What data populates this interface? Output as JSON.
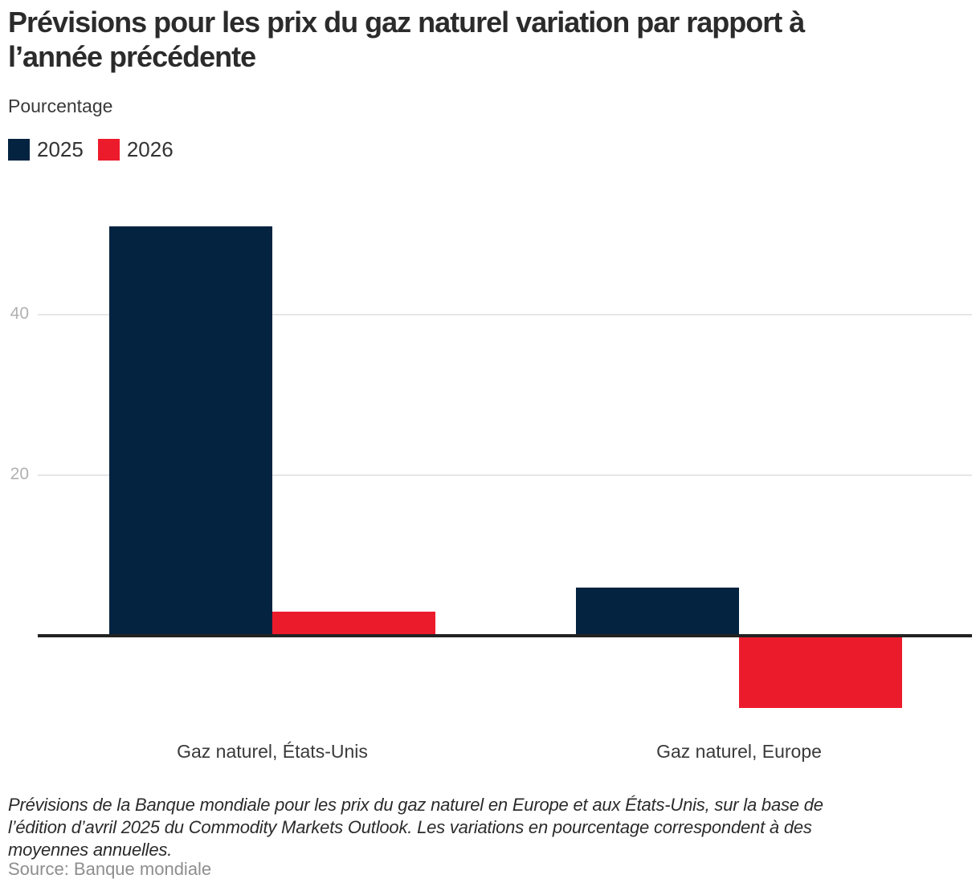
{
  "header": {
    "title": "Prévisions pour les prix du gaz naturel variation par rapport à l’année précédente",
    "title_lines": [
      "Prévisions pour les prix du gaz naturel variation par rapport à",
      "l’année précédente"
    ],
    "units_label": "Pourcentage"
  },
  "chart_data": {
    "type": "bar",
    "title": "Prévisions pour les prix du gaz naturel variation par rapport à l’année précédente",
    "ylabel": "Pourcentage",
    "categories": [
      "Gaz naturel, États-Unis",
      "Gaz naturel, Europe"
    ],
    "series": [
      {
        "name": "2025",
        "color": "#042340",
        "values": [
          51,
          6
        ]
      },
      {
        "name": "2026",
        "color": "#ec1b2c",
        "values": [
          3,
          -9
        ]
      }
    ],
    "yticks": [
      40,
      20
    ],
    "ylim": [
      -12,
      52
    ],
    "grid": true,
    "legend_position": "top-left",
    "axis_color": "#222222",
    "gridline_color": "#e6e6e6",
    "tick_label_color": "#b0b0b0"
  },
  "footnote": {
    "lines": [
      "Prévisions de la Banque mondiale pour les prix du gaz naturel en Europe et aux États-Unis, sur la base de",
      "l’édition d’avril 2025 du Commodity Markets Outlook. Les variations en pourcentage correspondent à des",
      "moyennes annuelles."
    ]
  },
  "source": "Source: Banque mondiale"
}
